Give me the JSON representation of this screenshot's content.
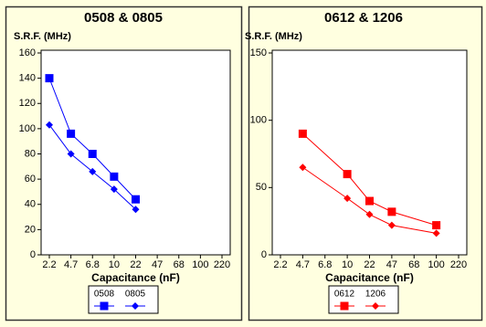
{
  "chart_data": [
    {
      "type": "line",
      "title": "0508 & 0805",
      "y_label": "S.R.F. (MHz)",
      "x_label": "Capacitance (nF)",
      "categories": [
        "2.2",
        "4.7",
        "6.8",
        "10",
        "22",
        "47",
        "68",
        "100",
        "220"
      ],
      "ylim": [
        0,
        160
      ],
      "yticks": [
        0,
        20,
        40,
        60,
        80,
        100,
        120,
        140,
        160
      ],
      "series": [
        {
          "name": "0508",
          "color": "#0000ff",
          "marker": "square",
          "x": [
            "2.2",
            "4.7",
            "6.8",
            "10",
            "22"
          ],
          "values": [
            140,
            96,
            80,
            62,
            44
          ]
        },
        {
          "name": "0805",
          "color": "#0000ff",
          "marker": "diamond",
          "x": [
            "2.2",
            "4.7",
            "6.8",
            "10",
            "22"
          ],
          "values": [
            103,
            80,
            66,
            52,
            36
          ]
        }
      ]
    },
    {
      "type": "line",
      "title": "0612 & 1206",
      "y_label": "S.R.F. (MHz)",
      "x_label": "Capacitance (nF)",
      "categories": [
        "2.2",
        "4.7",
        "6.8",
        "10",
        "22",
        "47",
        "68",
        "100",
        "220"
      ],
      "ylim": [
        0,
        150
      ],
      "yticks": [
        0,
        50,
        100,
        150
      ],
      "series": [
        {
          "name": "0612",
          "color": "#ff0000",
          "marker": "square",
          "x": [
            "4.7",
            "10",
            "22",
            "47",
            "100"
          ],
          "values": [
            90,
            60,
            40,
            32,
            22
          ]
        },
        {
          "name": "1206",
          "color": "#ff0000",
          "marker": "diamond",
          "x": [
            "4.7",
            "10",
            "22",
            "47",
            "100"
          ],
          "values": [
            65,
            42,
            30,
            22,
            16
          ]
        }
      ]
    }
  ]
}
